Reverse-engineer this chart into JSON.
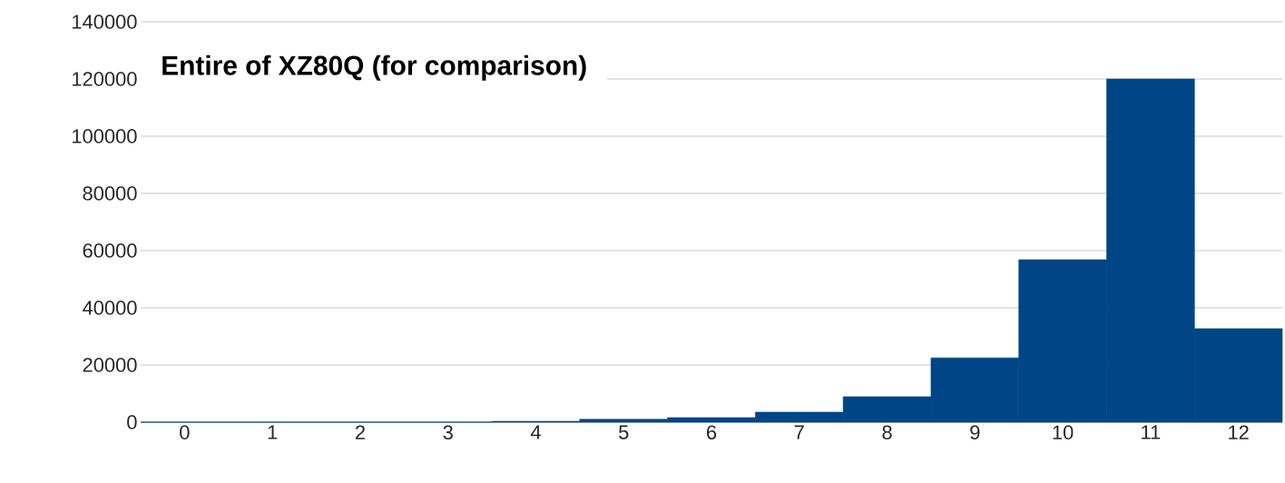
{
  "chart_data": {
    "type": "bar",
    "title": "Entire of XZ80Q (for comparison)",
    "categories": [
      "0",
      "1",
      "2",
      "3",
      "4",
      "5",
      "6",
      "7",
      "8",
      "9",
      "10",
      "11",
      "12"
    ],
    "values": [
      0,
      0,
      0,
      0,
      300,
      1000,
      1600,
      3500,
      8900,
      22500,
      56800,
      120000,
      32700
    ],
    "color": "#004586",
    "ylim": [
      0,
      140000
    ],
    "yticks": [
      0,
      20000,
      40000,
      60000,
      80000,
      100000,
      120000,
      140000
    ],
    "grid": "y"
  }
}
